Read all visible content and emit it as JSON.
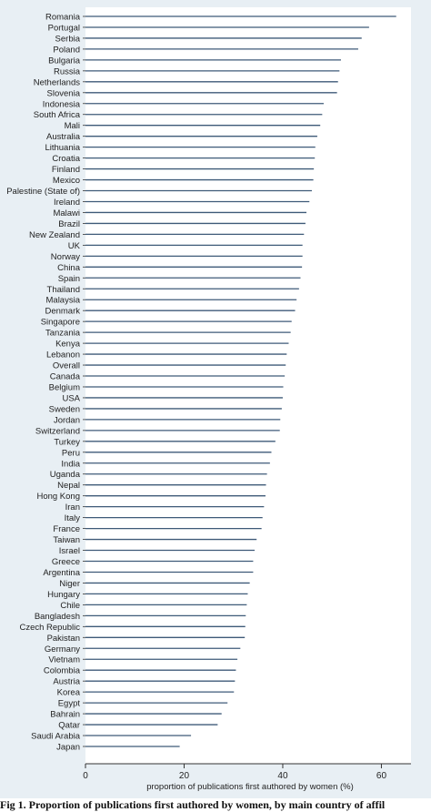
{
  "chart_data": {
    "type": "bar",
    "orientation": "horizontal",
    "title": "",
    "xlabel": "proportion of publications first authored by women (%)",
    "ylabel": "",
    "xlim": [
      0,
      66
    ],
    "xticks": [
      0,
      20,
      40,
      60
    ],
    "grid": false,
    "colors": {
      "bar": "#3e5a78",
      "plot_bg": "#ffffff",
      "outer_bg": "#e8eff4",
      "axis": "#333333"
    },
    "categories": [
      "Romania",
      "Portugal",
      "Serbia",
      "Poland",
      "Bulgaria",
      "Russia",
      "Netherlands",
      "Slovenia",
      "Indonesia",
      "South Africa",
      "Mali",
      "Australia",
      "Lithuania",
      "Croatia",
      "Finland",
      "Mexico",
      "Palestine (State of)",
      "Ireland",
      "Malawi",
      "Brazil",
      "New Zealand",
      "UK",
      "Norway",
      "China",
      "Spain",
      "Thailand",
      "Malaysia",
      "Denmark",
      "Singapore",
      "Tanzania",
      "Kenya",
      "Lebanon",
      "Overall",
      "Canada",
      "Belgium",
      "USA",
      "Sweden",
      "Jordan",
      "Switzerland",
      "Turkey",
      "Peru",
      "India",
      "Uganda",
      "Nepal",
      "Hong Kong",
      "Iran",
      "Italy",
      "France",
      "Taiwan",
      "Israel",
      "Greece",
      "Argentina",
      "Niger",
      "Hungary",
      "Chile",
      "Bangladesh",
      "Czech Republic",
      "Pakistan",
      "Germany",
      "Vietnam",
      "Colombia",
      "Austria",
      "Korea",
      "Egypt",
      "Bahrain",
      "Qatar",
      "Saudi Arabia",
      "Japan"
    ],
    "values": [
      63.0,
      57.5,
      56.0,
      55.3,
      51.8,
      51.5,
      51.2,
      51.0,
      48.3,
      48.0,
      47.6,
      47.0,
      46.6,
      46.5,
      46.3,
      46.2,
      45.9,
      45.4,
      44.8,
      44.6,
      44.3,
      44.0,
      44.0,
      43.9,
      43.6,
      43.3,
      42.8,
      42.5,
      41.8,
      41.6,
      41.2,
      40.8,
      40.6,
      40.4,
      40.1,
      40.0,
      39.8,
      39.5,
      39.4,
      38.5,
      37.7,
      37.4,
      36.8,
      36.6,
      36.5,
      36.2,
      35.9,
      35.7,
      34.7,
      34.3,
      34.0,
      34.0,
      33.3,
      32.9,
      32.7,
      32.5,
      32.4,
      32.3,
      31.4,
      30.8,
      30.5,
      30.3,
      30.1,
      28.8,
      27.6,
      26.8,
      21.4,
      19.1
    ]
  },
  "caption": "Fig 1. Proportion of publications first authored by women, by main country of affil"
}
